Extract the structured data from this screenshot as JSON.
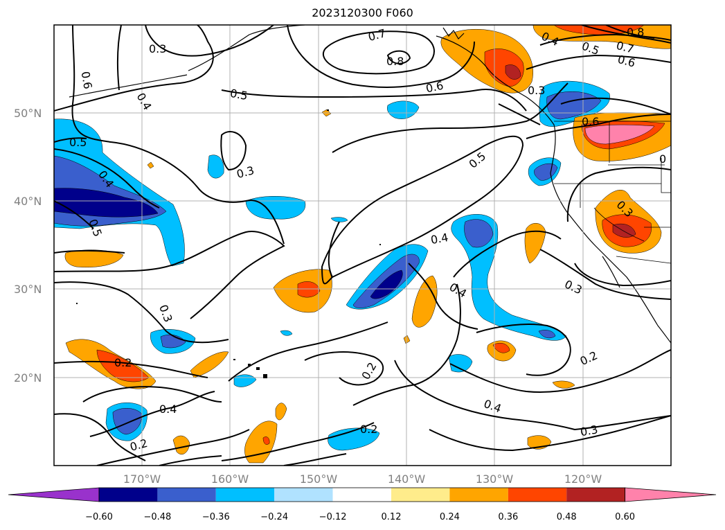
{
  "title": "2023120300 F060",
  "map": {
    "latitude_labels": [
      "50°N",
      "40°N",
      "30°N",
      "20°N"
    ],
    "longitude_labels": [
      "170°W",
      "160°W",
      "150°W",
      "140°W",
      "130°W",
      "120°W"
    ],
    "colorbar": {
      "ticks": [
        "−0.60",
        "−0.48",
        "−0.36",
        "−0.24",
        "−0.12",
        "0.12",
        "0.24",
        "0.36",
        "0.48",
        "0.60"
      ],
      "colors": [
        "#9932cc",
        "#00008b",
        "#3a5fcd",
        "#00bfff",
        "#b0e2ff",
        "#ffffff",
        "#ffec8b",
        "#ffa500",
        "#ff4500",
        "#b22222",
        "#ff82ab"
      ]
    },
    "contour_labels": [
      {
        "text": "0.3"
      },
      {
        "text": "0.7"
      },
      {
        "text": "0.8"
      },
      {
        "text": "0.6"
      },
      {
        "text": "0.5"
      },
      {
        "text": "0.6"
      },
      {
        "text": "0.4"
      },
      {
        "text": "0.4"
      },
      {
        "text": "0.5"
      },
      {
        "text": "0.8"
      },
      {
        "text": "0.7"
      },
      {
        "text": "0.6"
      },
      {
        "text": "0.3"
      },
      {
        "text": "0.6"
      },
      {
        "text": "0.5"
      },
      {
        "text": "0.3"
      },
      {
        "text": "0.5"
      },
      {
        "text": "0.4"
      },
      {
        "text": "0.5"
      },
      {
        "text": "0.4"
      },
      {
        "text": "0.4"
      },
      {
        "text": "0.3"
      },
      {
        "text": "0.3"
      },
      {
        "text": "0.2"
      },
      {
        "text": "0.2"
      },
      {
        "text": "0.4"
      },
      {
        "text": "0.2"
      },
      {
        "text": "0.2"
      },
      {
        "text": "0.4"
      },
      {
        "text": "0.2"
      },
      {
        "text": "0.3"
      },
      {
        "text": "0.3"
      },
      {
        "text": "0"
      }
    ]
  }
}
